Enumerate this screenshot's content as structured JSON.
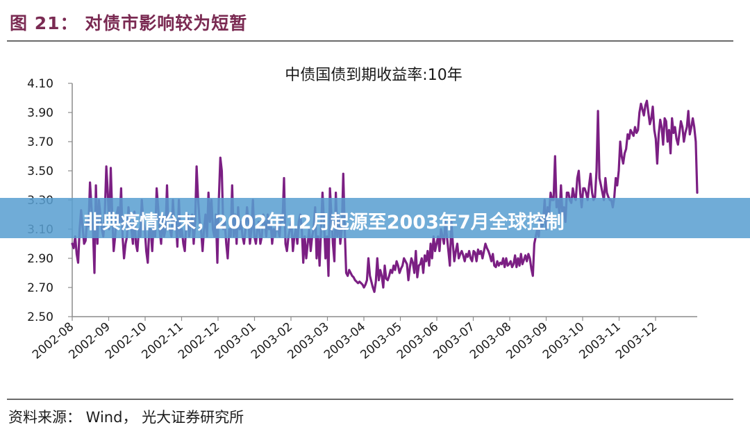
{
  "header": {
    "figure_title": "图 21：  对债市影响较为短暂"
  },
  "source": {
    "text": "资料来源：  Wind，  光大证券研究所"
  },
  "banner": {
    "text": "非典疫情始末，2002年12月起源至2003年7月全球控制"
  },
  "colors": {
    "series": "#7b1f83",
    "title": "#7a2a52",
    "banner": "#589ed0"
  },
  "chart_data": {
    "type": "line",
    "title": "中债国债到期收益率:10年",
    "xlabel": "",
    "ylabel": "",
    "ylim": [
      2.5,
      4.1
    ],
    "yticks": [
      "4.10",
      "3.90",
      "3.70",
      "3.50",
      "3.30",
      "3.10",
      "2.90",
      "2.70",
      "2.50"
    ],
    "xticks": [
      "2002-08",
      "2002-09",
      "2002-10",
      "2002-11",
      "2002-12",
      "2003-01",
      "2003-02",
      "2003-03",
      "2003-04",
      "2003-05",
      "2003-06",
      "2003-07",
      "2003-08",
      "2003-09",
      "2003-10",
      "2003-11",
      "2003-12"
    ],
    "grid": false,
    "series": [
      {
        "name": "中债国债到期收益率:10年",
        "x_start": "2002-08",
        "x_end": "2003-12-28",
        "values": [
          3.0,
          2.97,
          3.05,
          2.93,
          2.87,
          3.1,
          3.23,
          3.12,
          3.0,
          3.02,
          3.15,
          3.12,
          3.42,
          3.25,
          3.1,
          2.8,
          3.4,
          3.0,
          3.3,
          3.2,
          3.1,
          3.05,
          3.2,
          3.53,
          3.35,
          3.1,
          3.52,
          3.2,
          2.95,
          3.05,
          3.2,
          3.25,
          3.15,
          3.38,
          3.05,
          2.9,
          3.0,
          3.05,
          3.25,
          3.15,
          3.1,
          3.0,
          3.22,
          3.0,
          2.95,
          3.1,
          3.05,
          3.3,
          3.15,
          3.1,
          2.95,
          2.87,
          3.1,
          3.1,
          2.95,
          3.15,
          3.05,
          3.38,
          3.25,
          3.1,
          3.0,
          3.2,
          3.05,
          3.1,
          3.4,
          3.1,
          3.1,
          3.05,
          3.3,
          3.1,
          3.15,
          2.98,
          3.3,
          3.05,
          3.1,
          3.0,
          2.95,
          3.15,
          3.2,
          3.05,
          3.15,
          3.2,
          3.0,
          3.15,
          3.53,
          3.3,
          3.15,
          3.1,
          2.95,
          3.1,
          3.2,
          3.05,
          3.35,
          3.15,
          3.3,
          3.1,
          3.05,
          3.2,
          2.87,
          3.3,
          3.59,
          3.5,
          3.1,
          3.15,
          3.0,
          2.9,
          3.1,
          3.05,
          3.4,
          3.05,
          3.2,
          3.0,
          3.25,
          3.1,
          3.15,
          3.05,
          3.0,
          3.1,
          3.25,
          3.15,
          3.0,
          3.1,
          3.3,
          3.05,
          3.0,
          3.1,
          3.15,
          3.0,
          3.05,
          3.2,
          3.15,
          3.05,
          3.2,
          3.1,
          3.15,
          3.0,
          3.1,
          3.05,
          3.15,
          3.1,
          3.05,
          3.2,
          3.15,
          3.45,
          3.0,
          2.95,
          3.05,
          3.1,
          3.15,
          2.95,
          3.05,
          3.1,
          3.0,
          3.15,
          3.2,
          3.1,
          2.87,
          3.05,
          2.9,
          3.0,
          3.1,
          2.95,
          3.05,
          3.1,
          3.25,
          2.9,
          3.05,
          2.85,
          3.1,
          3.35,
          3.15,
          2.9,
          3.05,
          2.78,
          3.38,
          3.2,
          3.0,
          2.88,
          3.35,
          3.05,
          3.2,
          3.0,
          3.1,
          3.48,
          3.1,
          2.8,
          2.78,
          2.82,
          2.8,
          2.78,
          2.77,
          2.75,
          2.74,
          2.73,
          2.74,
          2.73,
          2.72,
          2.7,
          2.72,
          2.75,
          2.9,
          2.78,
          2.74,
          2.7,
          2.67,
          2.74,
          2.9,
          2.75,
          2.82,
          2.78,
          2.7,
          2.85,
          2.76,
          2.75,
          2.78,
          2.82,
          2.8,
          2.85,
          2.82,
          2.88,
          2.85,
          2.8,
          2.83,
          2.85,
          2.9,
          2.88,
          2.86,
          2.75,
          2.84,
          2.9,
          2.87,
          2.8,
          2.95,
          2.77,
          2.85,
          2.86,
          2.9,
          2.8,
          2.92,
          2.88,
          2.95,
          2.85,
          3.0,
          2.9,
          3.05,
          2.95,
          3.0,
          3.05,
          2.95,
          3.1,
          3.05,
          3.0,
          3.15,
          3.05,
          2.95,
          2.85,
          3.15,
          3.0,
          2.88,
          2.95,
          3.0,
          2.9,
          2.93,
          2.95,
          2.92,
          2.88,
          2.93,
          2.91,
          2.95,
          2.9,
          2.88,
          2.95,
          2.94,
          2.88,
          2.96,
          2.93,
          2.95,
          2.9,
          2.95,
          3.0,
          2.97,
          2.95,
          2.92,
          2.88,
          2.93,
          2.85,
          2.84,
          2.88,
          2.85,
          2.87,
          2.86,
          2.9,
          2.84,
          2.9,
          2.85,
          2.86,
          2.88,
          2.84,
          2.86,
          2.92,
          2.84,
          2.9,
          2.85,
          2.93,
          2.86,
          2.89,
          2.92,
          2.88,
          2.93,
          2.9,
          2.83,
          2.78,
          3.0,
          3.05,
          3.1,
          3.05,
          3.2,
          3.1,
          3.15,
          3.3,
          3.1,
          3.25,
          3.2,
          3.35,
          3.3,
          3.3,
          3.6,
          3.25,
          3.3,
          3.2,
          3.4,
          3.2,
          3.25,
          3.15,
          3.35,
          3.35,
          3.3,
          3.28,
          3.38,
          3.32,
          3.3,
          3.45,
          3.5,
          3.35,
          3.25,
          3.38,
          3.38,
          3.35,
          3.3,
          3.4,
          3.48,
          3.35,
          3.3,
          3.32,
          3.5,
          3.91,
          3.45,
          3.4,
          3.35,
          3.3,
          3.45,
          3.35,
          3.32,
          3.3,
          3.3,
          3.25,
          3.32,
          3.45,
          3.4,
          3.5,
          3.7,
          3.6,
          3.55,
          3.62,
          3.65,
          3.75,
          3.72,
          3.78,
          3.76,
          3.74,
          3.8,
          3.76,
          3.78,
          3.9,
          3.96,
          3.92,
          3.88,
          3.95,
          3.98,
          3.9,
          3.82,
          3.86,
          3.94,
          3.78,
          3.72,
          3.55,
          3.75,
          3.85,
          3.8,
          3.68,
          3.86,
          3.84,
          3.7,
          3.78,
          3.62,
          3.86,
          3.76,
          3.8,
          3.72,
          3.68,
          3.76,
          3.84,
          3.8,
          3.7,
          3.76,
          3.8,
          3.91,
          3.75,
          3.8,
          3.86,
          3.8,
          3.7,
          3.35
        ]
      }
    ]
  }
}
